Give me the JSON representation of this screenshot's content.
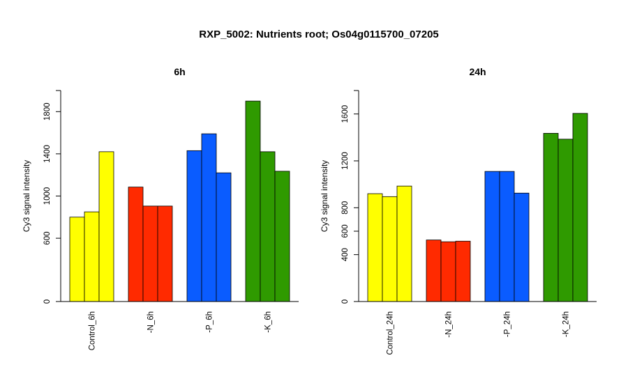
{
  "title": "RXP_5002: Nutrients root; Os04g0115700_07205",
  "chart_data": [
    {
      "type": "bar",
      "title": "6h",
      "xlabel": "",
      "ylabel": "Cy3 signal intensity",
      "categories": [
        "Control_6h",
        "-N_6h",
        "-P_6h",
        "-K_6h"
      ],
      "group_colors": [
        "#ffff00",
        "#ff2a00",
        "#0a5cff",
        "#2f9a00"
      ],
      "values": [
        [
          800,
          850,
          1420
        ],
        [
          1085,
          905,
          905
        ],
        [
          1430,
          1590,
          1220
        ],
        [
          1900,
          1420,
          1235
        ]
      ],
      "yticks": [
        0,
        600,
        1000,
        1400,
        1800
      ],
      "ylim": [
        0,
        2000
      ],
      "grid": false
    },
    {
      "type": "bar",
      "title": "24h",
      "xlabel": "",
      "ylabel": "Cy3 signal intensity",
      "categories": [
        "Control_24h",
        "-N_24h",
        "-P_24h",
        "-K_24h"
      ],
      "group_colors": [
        "#ffff00",
        "#ff2a00",
        "#0a5cff",
        "#2f9a00"
      ],
      "values": [
        [
          920,
          895,
          985
        ],
        [
          525,
          510,
          515
        ],
        [
          1110,
          1110,
          925
        ],
        [
          1435,
          1385,
          1605
        ]
      ],
      "yticks": [
        0,
        400,
        600,
        800,
        1200,
        1600
      ],
      "ylim": [
        0,
        1800
      ],
      "grid": false
    }
  ]
}
